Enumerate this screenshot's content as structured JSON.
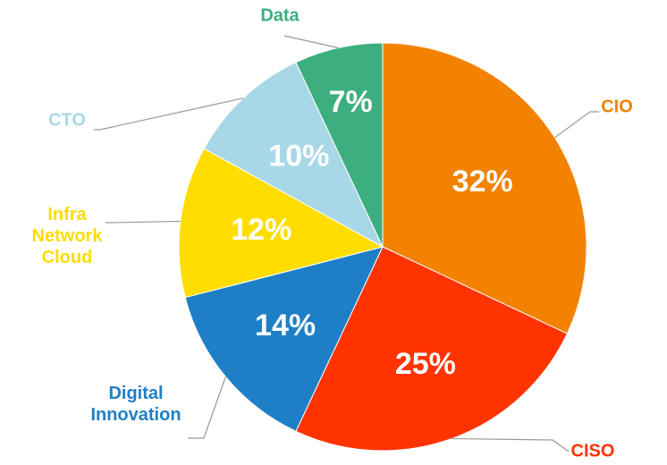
{
  "chart_data": {
    "type": "pie",
    "categories": [
      "CIO",
      "CISO",
      "Digital Innovation",
      "Infra Network Cloud",
      "CTO",
      "Data"
    ],
    "values": [
      32,
      25,
      14,
      12,
      10,
      7
    ],
    "value_labels": [
      "32%",
      "25%",
      "14%",
      "12%",
      "10%",
      "7%"
    ],
    "colors": [
      "#f38200",
      "#ff3300",
      "#1e7fc6",
      "#ffdd00",
      "#a8d8e8",
      "#3daf7f"
    ]
  }
}
